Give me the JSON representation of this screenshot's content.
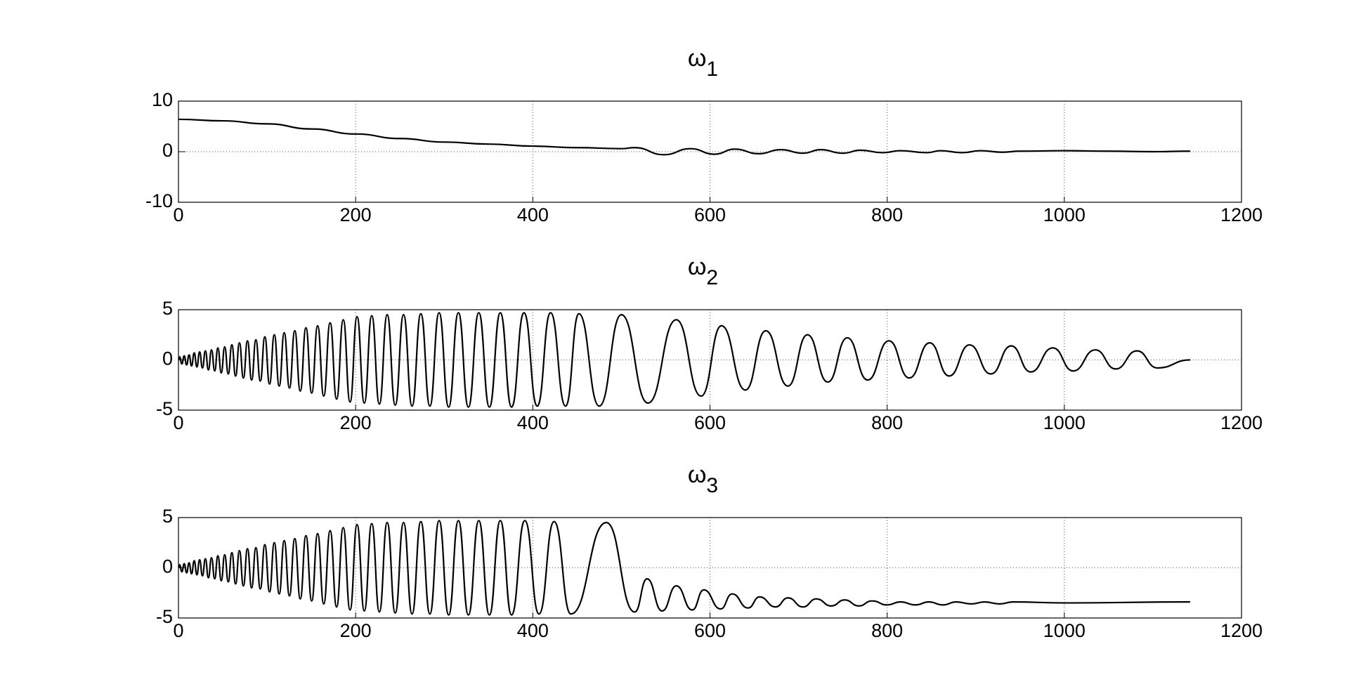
{
  "chart_data": [
    {
      "type": "line",
      "title": "ω",
      "title_sub": "1",
      "color": "#000000",
      "grid": true,
      "xlim": [
        0,
        1200
      ],
      "xticks": [
        0,
        200,
        400,
        600,
        800,
        1000,
        1200
      ],
      "ylim": [
        -10,
        10
      ],
      "yticks": [
        -10,
        0,
        10
      ],
      "x": [
        0,
        50,
        100,
        150,
        200,
        250,
        300,
        350,
        400,
        450,
        500,
        515,
        548,
        578,
        605,
        628,
        655,
        680,
        705,
        725,
        750,
        770,
        795,
        815,
        845,
        860,
        885,
        905,
        930,
        950,
        1000,
        1050,
        1100,
        1142
      ],
      "values": [
        6.4,
        6.1,
        5.5,
        4.5,
        3.5,
        2.6,
        1.9,
        1.5,
        1.1,
        0.8,
        0.6,
        0.8,
        -0.6,
        0.6,
        -0.5,
        0.5,
        -0.4,
        0.4,
        -0.3,
        0.4,
        -0.3,
        0.3,
        -0.2,
        0.2,
        -0.2,
        0.2,
        -0.2,
        0.2,
        -0.1,
        0.1,
        0.2,
        0.1,
        0,
        0.1
      ]
    },
    {
      "type": "line",
      "title": "ω",
      "title_sub": "2",
      "color": "#000000",
      "grid": true,
      "xlim": [
        0,
        1200
      ],
      "xticks": [
        0,
        200,
        400,
        600,
        800,
        1000,
        1200
      ],
      "ylim": [
        -5,
        5
      ],
      "yticks": [
        -5,
        0,
        5
      ],
      "x": [
        0,
        1.3,
        3.8,
        6.5,
        9.2,
        12,
        14.8,
        17.8,
        20.8,
        23.9,
        27.1,
        30.4,
        33.8,
        37.3,
        40.9,
        44.5,
        48.3,
        52.2,
        56.2,
        60.3,
        64.5,
        68.8,
        73.3,
        77.9,
        82.6,
        87.4,
        92.4,
        97.5,
        102.8,
        108.2,
        113.7,
        119.4,
        125.3,
        131.3,
        137.5,
        143.9,
        150.4,
        157.1,
        164,
        171.2,
        178.5,
        186,
        193.7,
        201.6,
        209.8,
        218.2,
        226.8,
        235.6,
        244.7,
        254.1,
        263.7,
        273.6,
        283.8,
        294.2,
        305,
        316,
        327.3,
        339,
        351,
        363.3,
        376,
        390,
        405,
        420,
        437,
        452,
        475,
        500,
        530,
        562,
        590,
        613,
        640,
        663,
        688,
        710,
        733,
        755,
        778,
        802,
        825,
        848,
        870,
        893,
        917,
        940,
        962,
        987,
        1010,
        1035,
        1058,
        1082,
        1105,
        1142
      ],
      "values": [
        0,
        0.3,
        -0.4,
        0.4,
        -0.5,
        0.5,
        -0.6,
        0.7,
        -0.7,
        0.8,
        -0.8,
        0.9,
        -1,
        1,
        -1.1,
        1.2,
        -1.3,
        1.3,
        -1.4,
        1.5,
        -1.6,
        1.7,
        -1.8,
        1.9,
        -2,
        2,
        -2.1,
        2.3,
        -2.4,
        2.5,
        -2.6,
        2.7,
        -2.8,
        2.9,
        -3.1,
        3.2,
        -3.3,
        3.4,
        -3.6,
        3.7,
        -3.9,
        4,
        -4.2,
        4.3,
        -4.3,
        4.4,
        -4.4,
        4.5,
        -4.5,
        4.5,
        -4.6,
        4.6,
        -4.6,
        4.7,
        -4.7,
        4.7,
        -4.7,
        4.7,
        -4.7,
        4.7,
        -4.7,
        4.7,
        -4.6,
        4.7,
        -4.6,
        4.6,
        -4.6,
        4.5,
        -4.3,
        4,
        -3.6,
        3.4,
        -3,
        2.9,
        -2.6,
        2.5,
        -2.2,
        2.2,
        -2,
        1.9,
        -1.8,
        1.7,
        -1.6,
        1.5,
        -1.4,
        1.4,
        -1.2,
        1.2,
        -1.1,
        1,
        -0.9,
        0.9,
        -0.8,
        0
      ]
    },
    {
      "type": "line",
      "title": "ω",
      "title_sub": "3",
      "color": "#000000",
      "grid": true,
      "xlim": [
        0,
        1200
      ],
      "xticks": [
        0,
        200,
        400,
        600,
        800,
        1000,
        1200
      ],
      "ylim": [
        -5,
        5
      ],
      "yticks": [
        -5,
        0,
        5
      ],
      "x": [
        0,
        1.3,
        3.8,
        6.5,
        9.2,
        12,
        14.8,
        17.8,
        20.8,
        23.9,
        27.1,
        30.4,
        33.8,
        37.3,
        40.9,
        44.5,
        48.3,
        52.2,
        56.2,
        60.3,
        64.5,
        68.8,
        73.3,
        77.9,
        82.6,
        87.4,
        92.4,
        97.5,
        102.8,
        108.2,
        113.7,
        119.4,
        125.3,
        131.3,
        137.5,
        143.9,
        150.4,
        157.1,
        164,
        171.2,
        178.5,
        186,
        193.7,
        201.6,
        209.8,
        218.2,
        226.8,
        235.6,
        244.7,
        254.1,
        263.7,
        273.6,
        283.8,
        294.2,
        305,
        316,
        327.3,
        339,
        351,
        363.3,
        376,
        391,
        407,
        424,
        443,
        483,
        515,
        529,
        546,
        562,
        580,
        593,
        612,
        625,
        643,
        656,
        674,
        688,
        705,
        720,
        737,
        752,
        768,
        783,
        800,
        815,
        832,
        847,
        863,
        878,
        895,
        910,
        927,
        942,
        1000,
        1142
      ],
      "values": [
        0,
        0.3,
        -0.4,
        0.4,
        -0.5,
        0.5,
        -0.6,
        0.7,
        -0.7,
        0.8,
        -0.8,
        0.9,
        -1,
        1,
        -1.1,
        1.2,
        -1.3,
        1.3,
        -1.4,
        1.5,
        -1.6,
        1.7,
        -1.8,
        1.9,
        -2,
        2,
        -2.1,
        2.3,
        -2.4,
        2.5,
        -2.6,
        2.7,
        -2.8,
        2.9,
        -3.1,
        3.2,
        -3.3,
        3.4,
        -3.6,
        3.7,
        -3.9,
        4,
        -4.2,
        4.3,
        -4.3,
        4.4,
        -4.4,
        4.5,
        -4.5,
        4.5,
        -4.6,
        4.6,
        -4.6,
        4.7,
        -4.7,
        4.7,
        -4.7,
        4.7,
        -4.7,
        4.7,
        -4.7,
        4.7,
        -4.6,
        4.6,
        -4.6,
        4.5,
        -4.4,
        -1.1,
        -4.3,
        -1.8,
        -4.2,
        -2.2,
        -4.1,
        -2.6,
        -4,
        -2.9,
        -3.9,
        -3,
        -3.9,
        -3.1,
        -3.8,
        -3.2,
        -3.8,
        -3.3,
        -3.7,
        -3.4,
        -3.7,
        -3.4,
        -3.7,
        -3.4,
        -3.6,
        -3.4,
        -3.6,
        -3.4,
        -3.5,
        -3.4
      ]
    }
  ]
}
